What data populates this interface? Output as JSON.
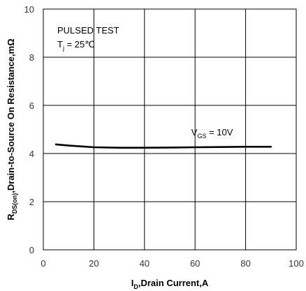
{
  "chart_data": {
    "type": "line",
    "title": "",
    "xlabel": "I_D,Drain Current,A",
    "ylabel": "R_DS(on),Drain-to-Source On Resistance,mΩ",
    "xlabel_parts": {
      "main": "I",
      "sub": "D",
      "rest": ",Drain  Current,A"
    },
    "ylabel_parts": {
      "main": "R",
      "sub": "DS(on)",
      "rest": ",Drain-to-Source On Resistance,mΩ"
    },
    "xlim": [
      0,
      100
    ],
    "ylim": [
      0,
      10
    ],
    "x_ticks": [
      0,
      20,
      40,
      60,
      80,
      100
    ],
    "y_ticks": [
      0,
      2,
      4,
      6,
      8,
      10
    ],
    "grid": true,
    "annotations": {
      "pulsed": "PULSED TEST",
      "tj_main": "T",
      "tj_sub": "j",
      "tj_rest": " = 25℃",
      "vgs_main": "V",
      "vgs_sub": "GS",
      "vgs_rest": " = 10V"
    },
    "series": [
      {
        "label": "V_GS = 10V",
        "color": "#000000",
        "x": [
          5,
          10,
          20,
          30,
          40,
          50,
          60,
          70,
          80,
          90
        ],
        "y": [
          4.38,
          4.33,
          4.26,
          4.24,
          4.24,
          4.25,
          4.26,
          4.27,
          4.28,
          4.28
        ]
      }
    ]
  }
}
